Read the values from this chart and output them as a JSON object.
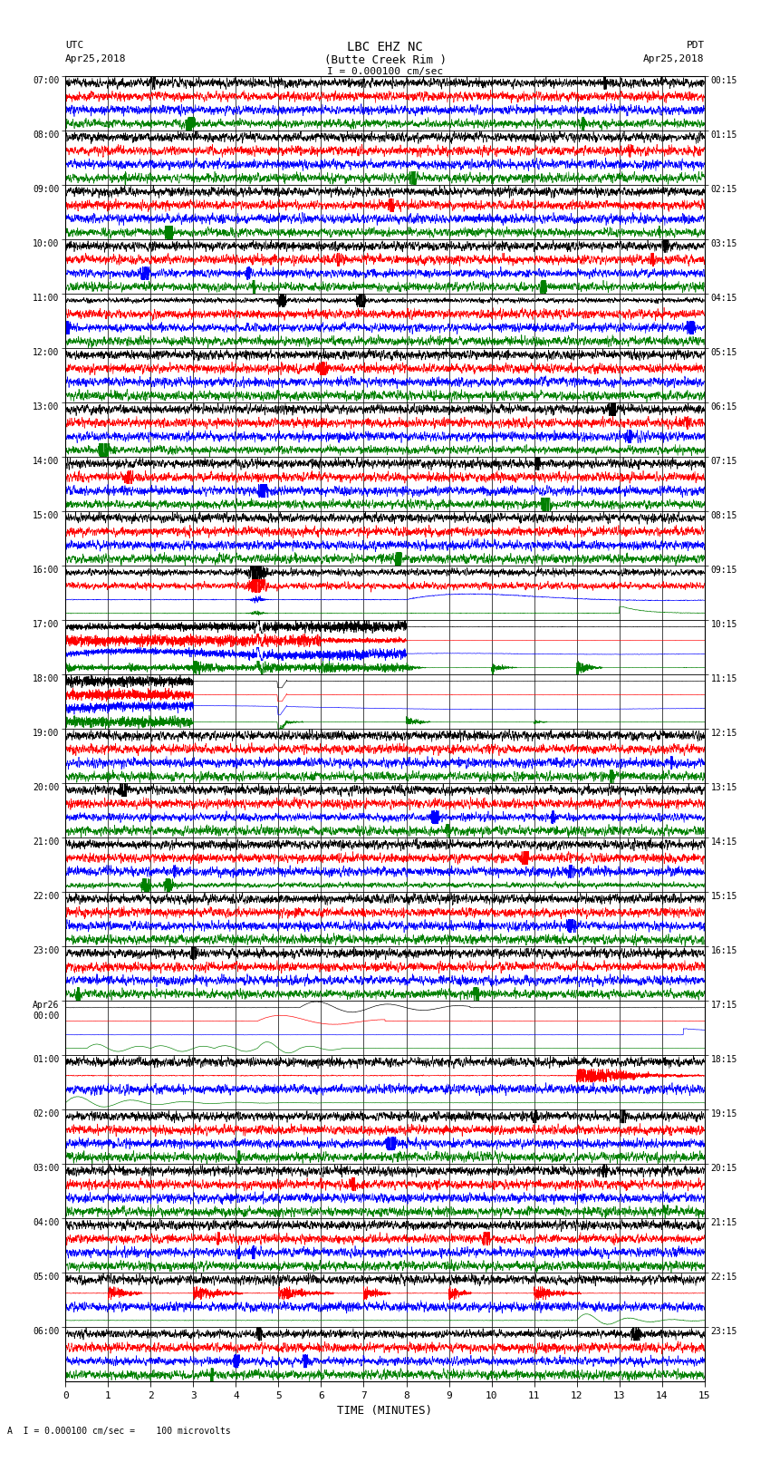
{
  "title_line1": "LBC EHZ NC",
  "title_line2": "(Butte Creek Rim )",
  "scale_text": "I = 0.000100 cm/sec",
  "left_label_top": "UTC",
  "left_label_date": "Apr25,2018",
  "right_label_top": "PDT",
  "right_label_date": "Apr25,2018",
  "bottom_label": "TIME (MINUTES)",
  "bottom_note": "A  I = 0.000100 cm/sec =    100 microvolts",
  "xlabel_ticks": [
    0,
    1,
    2,
    3,
    4,
    5,
    6,
    7,
    8,
    9,
    10,
    11,
    12,
    13,
    14,
    15
  ],
  "utc_times_left": [
    "07:00",
    "08:00",
    "09:00",
    "10:00",
    "11:00",
    "12:00",
    "13:00",
    "14:00",
    "15:00",
    "16:00",
    "17:00",
    "18:00",
    "19:00",
    "20:00",
    "21:00",
    "22:00",
    "23:00",
    "Apr26\n00:00",
    "01:00",
    "02:00",
    "03:00",
    "04:00",
    "05:00",
    "06:00"
  ],
  "pdt_times_right": [
    "00:15",
    "01:15",
    "02:15",
    "03:15",
    "04:15",
    "05:15",
    "06:15",
    "07:15",
    "08:15",
    "09:15",
    "10:15",
    "11:15",
    "12:15",
    "13:15",
    "14:15",
    "15:15",
    "16:15",
    "17:15",
    "18:15",
    "19:15",
    "20:15",
    "21:15",
    "22:15",
    "23:15"
  ],
  "num_rows": 24,
  "traces_per_row": 4,
  "colors_order": [
    "black",
    "red",
    "blue",
    "green"
  ],
  "bg_color": "#ffffff",
  "minutes_per_row": 15,
  "figwidth": 8.5,
  "figheight": 16.13
}
